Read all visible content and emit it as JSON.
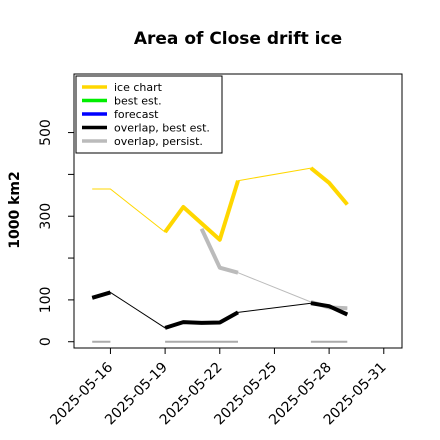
{
  "chart_data": {
    "type": "line",
    "title": "Area of Close drift ice",
    "ylabel": "1000 km2",
    "xlabel": "",
    "ylim": [
      -15,
      640
    ],
    "yticks": [
      0,
      100,
      300,
      500
    ],
    "xlim": [
      "2025-05-14",
      "2025-06-01"
    ],
    "xticks": [
      {
        "date": "2025-05-16",
        "label": "2025-05-16",
        "color": "#000000"
      },
      {
        "date": "2025-05-19",
        "label": "2025-05-19",
        "color": "#000000"
      },
      {
        "date": "2025-05-22",
        "label": "2025-05-22",
        "color": "#228B22"
      },
      {
        "date": "2025-05-25",
        "label": "2025-05-25",
        "color": "#000000"
      },
      {
        "date": "2025-05-28",
        "label": "2025-05-28",
        "color": "#000000"
      },
      {
        "date": "2025-05-31",
        "label": "2025-05-31",
        "color": "#000000"
      }
    ],
    "legend": {
      "position": "top-left",
      "entries": [
        {
          "label": "ice chart",
          "color": "#FFD700"
        },
        {
          "label": "best est.",
          "color": "#00EE00"
        },
        {
          "label": "forecast",
          "color": "#0000FF"
        },
        {
          "label": "overlap, best est.",
          "color": "#000000"
        },
        {
          "label": "overlap, persist.",
          "color": "#BBBBBB"
        }
      ]
    },
    "series": [
      {
        "key": "ice_chart_thin",
        "color": "#FFD700",
        "width": 1,
        "points": [
          [
            "2025-05-15",
            365
          ],
          [
            "2025-05-16",
            365
          ],
          [
            "2025-05-19",
            262
          ],
          [
            "2025-05-20",
            322
          ],
          [
            "2025-05-22",
            244
          ],
          [
            "2025-05-23",
            385
          ],
          [
            "2025-05-27",
            415
          ],
          [
            "2025-05-28",
            380
          ],
          [
            "2025-05-29",
            328
          ]
        ]
      },
      {
        "key": "ice_chart_thick",
        "color": "#FFD700",
        "width": 4,
        "points": [
          [
            "2025-05-15",
            365
          ],
          [
            "2025-05-16",
            365
          ]
        ],
        "segments": [
          [
            [
              "2025-05-19",
              262
            ],
            [
              "2025-05-20",
              322
            ],
            [
              "2025-05-22",
              244
            ],
            [
              "2025-05-23",
              385
            ]
          ],
          [
            [
              "2025-05-27",
              415
            ],
            [
              "2025-05-28",
              380
            ],
            [
              "2025-05-29",
              328
            ]
          ]
        ]
      },
      {
        "key": "overlap_persist_thin",
        "color": "#BBBBBB",
        "width": 1,
        "points": [
          [
            "2025-05-21",
            270
          ],
          [
            "2025-05-22",
            177
          ],
          [
            "2025-05-23",
            165
          ],
          [
            "2025-05-27",
            95
          ],
          [
            "2025-05-28",
            82
          ],
          [
            "2025-05-29",
            80
          ]
        ]
      },
      {
        "key": "overlap_persist_thick",
        "color": "#BBBBBB",
        "width": 4,
        "segments": [
          [
            [
              "2025-05-21",
              270
            ],
            [
              "2025-05-22",
              177
            ],
            [
              "2025-05-23",
              165
            ]
          ],
          [
            [
              "2025-05-27",
              95
            ],
            [
              "2025-05-28",
              82
            ],
            [
              "2025-05-29",
              80
            ]
          ]
        ]
      },
      {
        "key": "overlap_best_thin",
        "color": "#000000",
        "width": 1,
        "points": [
          [
            "2025-05-15",
            105
          ],
          [
            "2025-05-16",
            118
          ],
          [
            "2025-05-19",
            33
          ],
          [
            "2025-05-20",
            47
          ],
          [
            "2025-05-21",
            45
          ],
          [
            "2025-05-22",
            46
          ],
          [
            "2025-05-23",
            70
          ],
          [
            "2025-05-27",
            92
          ],
          [
            "2025-05-28",
            85
          ],
          [
            "2025-05-29",
            65
          ]
        ]
      },
      {
        "key": "overlap_best_thick",
        "color": "#000000",
        "width": 4,
        "segments": [
          [
            [
              "2025-05-15",
              105
            ],
            [
              "2025-05-16",
              118
            ]
          ],
          [
            [
              "2025-05-19",
              33
            ],
            [
              "2025-05-20",
              47
            ],
            [
              "2025-05-21",
              45
            ],
            [
              "2025-05-22",
              46
            ],
            [
              "2025-05-23",
              70
            ]
          ],
          [
            [
              "2025-05-27",
              92
            ],
            [
              "2025-05-28",
              85
            ],
            [
              "2025-05-29",
              65
            ]
          ]
        ]
      },
      {
        "key": "baseline_gray",
        "color": "#AAAAAA",
        "width": 2,
        "segments": [
          [
            [
              "2025-05-15",
              0
            ],
            [
              "2025-05-16",
              0
            ]
          ],
          [
            [
              "2025-05-19",
              0
            ],
            [
              "2025-05-23",
              0
            ]
          ],
          [
            [
              "2025-05-27",
              0
            ],
            [
              "2025-05-29",
              0
            ]
          ]
        ]
      }
    ]
  }
}
